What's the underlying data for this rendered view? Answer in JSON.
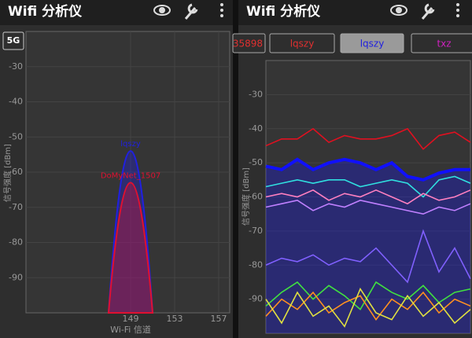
{
  "left": {
    "title": "Wifi 分析仪",
    "band_button": "5G",
    "chart": {
      "type": "line",
      "ylabel": "信号强度 [dBm]",
      "xlabel": "Wi-Fi 信道",
      "ylim": [
        -100,
        -20
      ],
      "yticks": [
        -30,
        -40,
        -50,
        -60,
        -70,
        -80,
        -90
      ],
      "xlim": [
        139.5,
        158
      ],
      "xticks": [
        149,
        153,
        157
      ],
      "series": [
        {
          "name": "lqszy",
          "color": "#2020e0",
          "x": [
            147,
            149,
            151
          ],
          "values": [
            -100,
            -54,
            -100
          ]
        },
        {
          "name": "DoMyNet_1507",
          "color": "#e01030",
          "x": [
            147,
            149,
            151
          ],
          "values": [
            -100,
            -63,
            -100
          ]
        }
      ]
    }
  },
  "right": {
    "title": "Wifi 分析仪",
    "tabs": [
      {
        "label": "35898",
        "color": "#e03030"
      },
      {
        "label": "lqszy",
        "color": "#e03030"
      },
      {
        "label": "lqszy",
        "color": "#2020e0",
        "selected": true
      },
      {
        "label": "txz",
        "color": "#d020c0"
      }
    ],
    "chart": {
      "type": "line",
      "ylabel": "信号强度 [dBm]",
      "ylim": [
        -100,
        -20
      ],
      "yticks": [
        -30,
        -40,
        -50,
        -60,
        -70,
        -80,
        -90
      ],
      "series": [
        {
          "color": "#e01020",
          "values": [
            -45,
            -43,
            -43,
            -40,
            -44,
            -42,
            -43,
            -43,
            -42,
            -40,
            -46,
            -42,
            -41,
            -44
          ]
        },
        {
          "color": "#1010ff",
          "selected": true,
          "values": [
            -51,
            -52,
            -49,
            -52,
            -50,
            -49,
            -50,
            -52,
            -50,
            -54,
            -55,
            -53,
            -52,
            -52
          ]
        },
        {
          "color": "#30e0e0",
          "values": [
            -57,
            -56,
            -55,
            -56,
            -55,
            -55,
            -57,
            -56,
            -55,
            -56,
            -60,
            -55,
            -54,
            -56
          ]
        },
        {
          "color": "#ff80c0",
          "values": [
            -60,
            -59,
            -60,
            -58,
            -61,
            -59,
            -60,
            -58,
            -60,
            -62,
            -59,
            -61,
            -60,
            -58
          ]
        },
        {
          "color": "#c080ff",
          "values": [
            -63,
            -62,
            -61,
            -64,
            -62,
            -63,
            -61,
            -62,
            -63,
            -64,
            -65,
            -63,
            -64,
            -62
          ]
        },
        {
          "color": "#8060ff",
          "values": [
            -80,
            -78,
            -79,
            -77,
            -80,
            -78,
            -79,
            -75,
            -80,
            -85,
            -70,
            -82,
            -75,
            -84
          ]
        },
        {
          "color": "#40e040",
          "values": [
            -92,
            -88,
            -85,
            -90,
            -86,
            -89,
            -93,
            -85,
            -88,
            -90,
            -86,
            -91,
            -88,
            -87
          ]
        },
        {
          "color": "#ff9020",
          "values": [
            -95,
            -90,
            -93,
            -88,
            -94,
            -91,
            -89,
            -96,
            -90,
            -93,
            -88,
            -94,
            -90,
            -92
          ]
        },
        {
          "color": "#e0e040",
          "values": [
            -90,
            -97,
            -88,
            -95,
            -92,
            -98,
            -87,
            -94,
            -96,
            -89,
            -95,
            -91,
            -97,
            -93
          ]
        }
      ]
    }
  }
}
